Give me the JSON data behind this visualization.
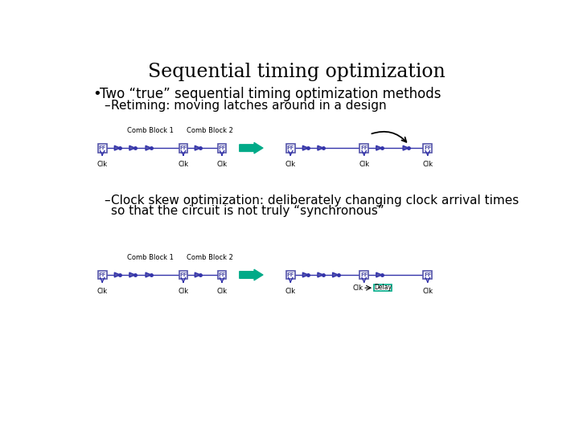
{
  "title": "Sequential timing optimization",
  "bullet1": "Two “true” sequential timing optimization methods",
  "sub1": "Retiming: moving latches around in a design",
  "sub2_line1": "Clock skew optimization: deliberately changing clock arrival times",
  "sub2_line2": "so that the circuit is not truly “synchronous”",
  "bg_color": "#ffffff",
  "title_fontsize": 17,
  "bullet_fontsize": 12,
  "sub_fontsize": 11,
  "ff_ec": "#5555aa",
  "ff_fc": "#ffffff",
  "wire_color": "#3333aa",
  "tri_fc": "#5555aa",
  "tri_ec": "#3333aa",
  "big_arrow_color": "#00aa88",
  "clk_label_fs": 6,
  "diag_label_fs": 6
}
